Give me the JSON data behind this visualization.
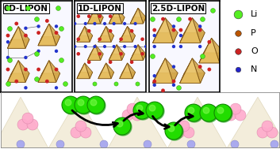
{
  "panels": [
    "0D-LIPON",
    "1D-LIPON",
    "2.5D-LIPON"
  ],
  "legend_labels": [
    "Li",
    "P",
    "O",
    "N"
  ],
  "legend_colors": [
    "#55ee22",
    "#bb5500",
    "#cc2222",
    "#2222cc"
  ],
  "bg_color": "#ffffff",
  "border_color": "#000000",
  "label_fontsize": 7.5,
  "fig_width": 3.52,
  "fig_height": 1.89,
  "dpi": 100,
  "tetra_face_color": "#d4a84b",
  "tetra_face_color2": "#c49030",
  "tetra_edge_color": "#7a5010",
  "li_color": "#55ee22",
  "o_color": "#cc2222",
  "n_color": "#2233cc",
  "bottom_li_color": "#22dd00",
  "bottom_bg": "#f0efe8",
  "arrow_color": "#000000",
  "pink_color": "#ffaacc"
}
